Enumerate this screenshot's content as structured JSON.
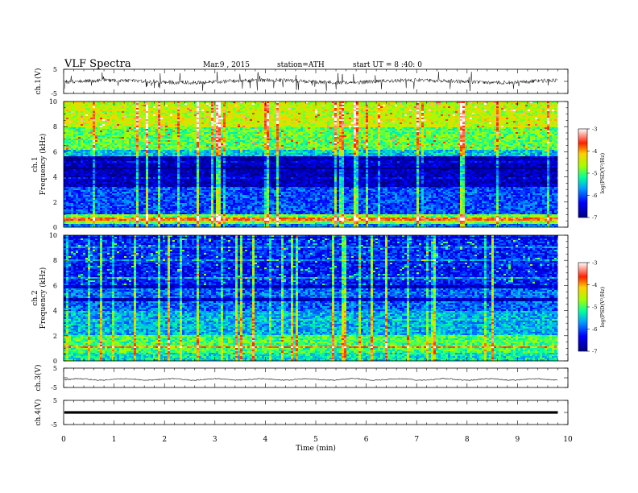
{
  "header": {
    "title": "VLF  Spectra",
    "date": "Mar.9 , 2015",
    "station": "station=ATH",
    "start_ut": "start  UT =  8 :40: 0"
  },
  "chart_data": [
    {
      "type": "line",
      "panel": "ch1-waveform",
      "ylabel": "ch.1(V)",
      "ylim": [
        -5,
        5
      ],
      "yticks": [
        "5",
        "-5"
      ],
      "series": [
        {
          "values": []
        }
      ]
    },
    {
      "type": "heatmap",
      "panel": "ch1-spectrogram",
      "ylabel": "ch.1\nFrequency (kHz)",
      "ylim": [
        0,
        10
      ],
      "yticks": [
        "0",
        "2",
        "4",
        "6",
        "8",
        "10"
      ],
      "colorbar": {
        "label": "log(PSD(V²/Hz)",
        "range": [
          -7,
          -3
        ],
        "ticks": [
          "-3",
          "-4",
          "-5",
          "-6",
          "-7"
        ]
      }
    },
    {
      "type": "heatmap",
      "panel": "ch2-spectrogram",
      "ylabel": "ch.2\nFrequency (kHz)",
      "ylim": [
        0,
        10
      ],
      "yticks": [
        "0",
        "2",
        "4",
        "6",
        "8",
        "10"
      ],
      "colorbar": {
        "label": "log(PSD(V²/Hz)",
        "range": [
          -7,
          -3
        ],
        "ticks": [
          "-3",
          "-4",
          "-5",
          "-6",
          "-7"
        ]
      }
    },
    {
      "type": "line",
      "panel": "ch3-waveform",
      "ylabel": "ch.3(V)",
      "ylim": [
        -5,
        5
      ],
      "yticks": [
        "5",
        "-5"
      ],
      "series": [
        {
          "values": []
        }
      ]
    },
    {
      "type": "line",
      "panel": "ch4-waveform",
      "ylabel": "ch.4(V)",
      "ylim": [
        -5,
        5
      ],
      "yticks": [
        "5",
        "-5"
      ],
      "series": [
        {
          "values": []
        }
      ]
    }
  ],
  "x_axis": {
    "label": "Time  (min)",
    "range": [
      0,
      10
    ],
    "data_end": 9.8,
    "ticks": [
      "0",
      "1",
      "2",
      "3",
      "4",
      "5",
      "6",
      "7",
      "8",
      "9",
      "10"
    ]
  }
}
